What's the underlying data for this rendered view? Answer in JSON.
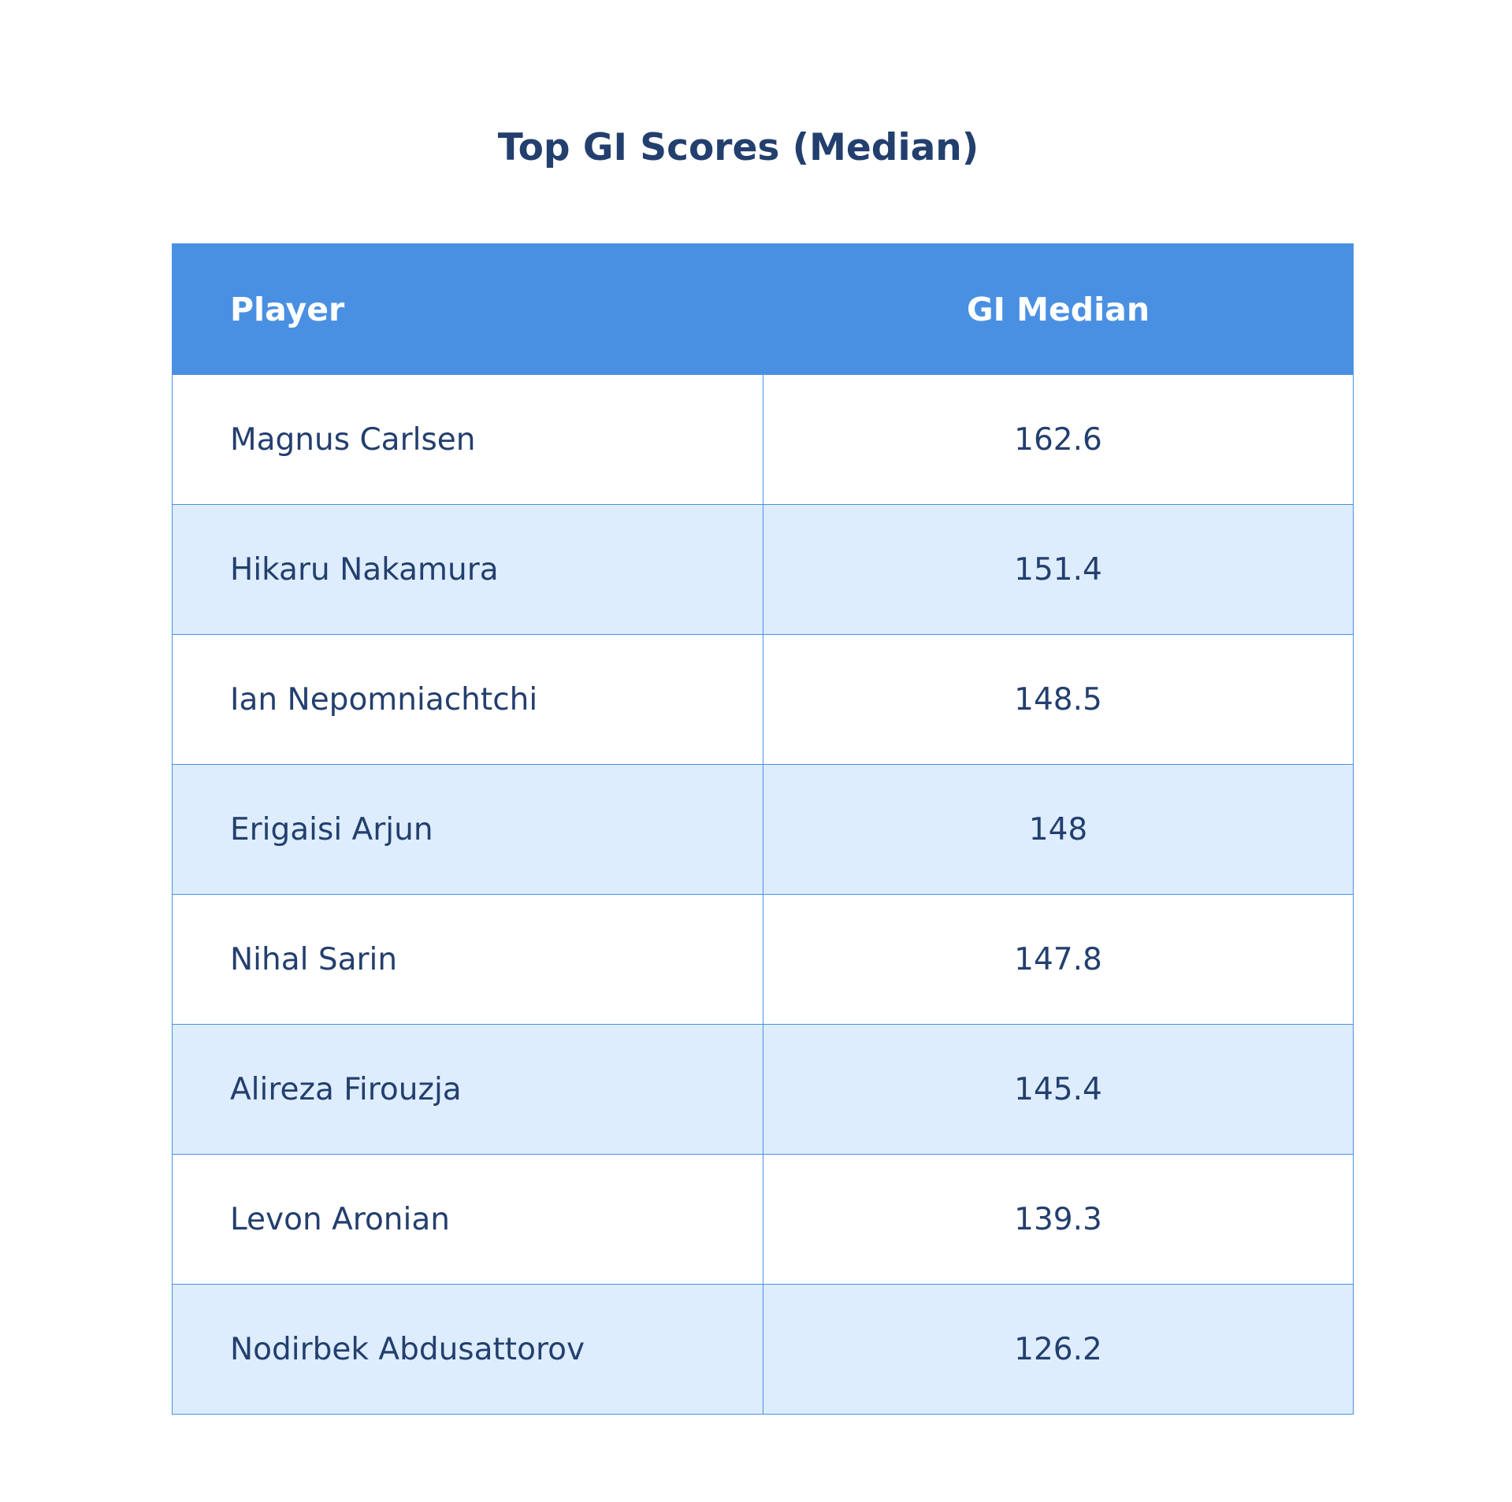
{
  "title": "Top GI Scores (Median)",
  "colors": {
    "header_bg": "#4a90e2",
    "header_text": "#ffffff",
    "text": "#233f6e",
    "row_alt": "#ddedfd",
    "row": "#ffffff",
    "border": "#4a90e2"
  },
  "chart_data": {
    "type": "table",
    "title": "Top GI Scores (Median)",
    "columns": [
      "Player",
      "GI Median"
    ],
    "rows": [
      {
        "player": "Magnus Carlsen",
        "value": "162.6"
      },
      {
        "player": "Hikaru Nakamura",
        "value": "151.4"
      },
      {
        "player": "Ian Nepomniachtchi",
        "value": "148.5"
      },
      {
        "player": "Erigaisi Arjun",
        "value": "148"
      },
      {
        "player": "Nihal Sarin",
        "value": "147.8"
      },
      {
        "player": "Alireza Firouzja",
        "value": "145.4"
      },
      {
        "player": "Levon Aronian",
        "value": "139.3"
      },
      {
        "player": "Nodirbek Abdusattorov",
        "value": "126.2"
      }
    ]
  }
}
